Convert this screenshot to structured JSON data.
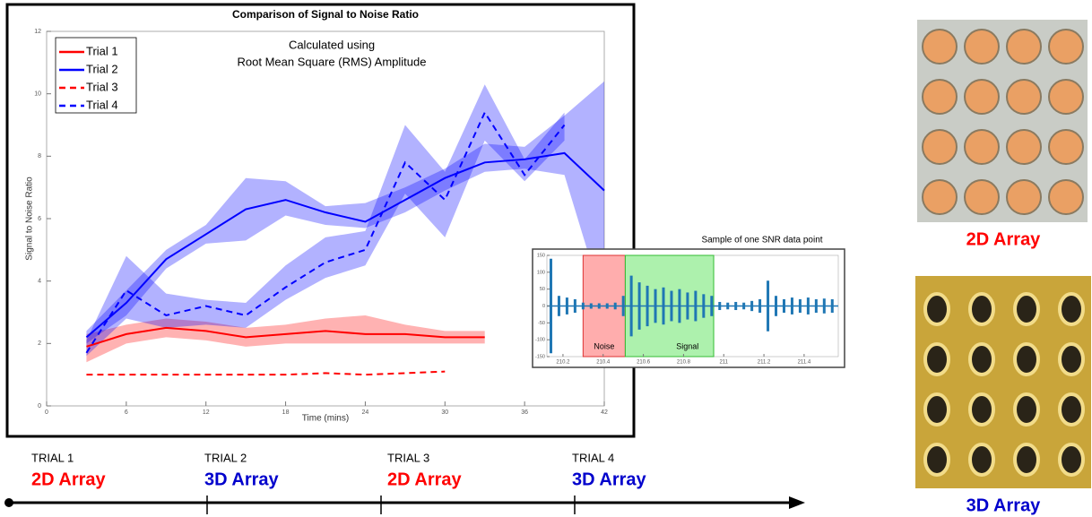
{
  "chart_data": [
    {
      "type": "line",
      "title": "Comparison of Signal to Noise Ratio",
      "annotations": [
        "Calculated using",
        "Root Mean Square (RMS) Amplitude"
      ],
      "xlabel": "Time (mins)",
      "ylabel": "Signal to Noise Ratio",
      "x": [
        3,
        6,
        9,
        12,
        15,
        18,
        21,
        24,
        27,
        30,
        33,
        36,
        39,
        42
      ],
      "xlim": [
        0,
        42
      ],
      "xticks": [
        0,
        6,
        12,
        18,
        24,
        30,
        36,
        42
      ],
      "ylim": [
        0,
        12
      ],
      "yticks": [
        0,
        2,
        4,
        6,
        8,
        10,
        12
      ],
      "legend": "upper left",
      "series": [
        {
          "name": "Trial 1",
          "color": "#ff0000",
          "dashed": false,
          "values": [
            1.9,
            2.3,
            2.5,
            2.4,
            2.2,
            2.3,
            2.4,
            2.3,
            2.3,
            2.2,
            2.2,
            null,
            null,
            null
          ],
          "lower": [
            1.4,
            2.0,
            2.2,
            2.1,
            1.9,
            2.0,
            2.0,
            2.0,
            2.0,
            2.0,
            2.0,
            null,
            null,
            null
          ],
          "upper": [
            2.3,
            2.6,
            2.8,
            2.7,
            2.5,
            2.6,
            2.8,
            2.9,
            2.6,
            2.4,
            2.4,
            null,
            null,
            null
          ]
        },
        {
          "name": "Trial 2",
          "color": "#0000ff",
          "dashed": false,
          "values": [
            2.2,
            3.3,
            4.7,
            5.5,
            6.3,
            6.6,
            6.2,
            5.9,
            6.6,
            7.3,
            7.8,
            7.9,
            8.1,
            6.9
          ],
          "lower": [
            2.0,
            2.9,
            4.4,
            5.2,
            5.3,
            6.1,
            5.8,
            5.7,
            6.2,
            6.9,
            7.5,
            7.6,
            7.4,
            3.2
          ],
          "upper": [
            2.4,
            3.7,
            5.0,
            5.8,
            7.3,
            7.2,
            6.4,
            6.5,
            7.0,
            7.6,
            8.4,
            8.3,
            9.3,
            10.4
          ]
        },
        {
          "name": "Trial 3",
          "color": "#ff0000",
          "dashed": true,
          "values": [
            1.0,
            1.0,
            1.0,
            1.0,
            1.0,
            1.0,
            1.05,
            1.0,
            1.05,
            1.1,
            null,
            null,
            null,
            null
          ]
        },
        {
          "name": "Trial 4",
          "color": "#0000ff",
          "dashed": true,
          "values": [
            1.7,
            3.7,
            2.9,
            3.2,
            2.9,
            3.8,
            4.6,
            5.0,
            7.8,
            6.6,
            9.4,
            7.4,
            9.0,
            null
          ],
          "lower": [
            1.6,
            2.8,
            2.5,
            2.6,
            2.5,
            3.4,
            4.1,
            4.5,
            6.8,
            5.4,
            8.5,
            7.2,
            8.5,
            null
          ],
          "upper": [
            2.1,
            4.8,
            3.6,
            3.4,
            3.3,
            4.5,
            5.4,
            5.6,
            9.0,
            7.5,
            10.3,
            7.9,
            9.4,
            null
          ]
        }
      ]
    },
    {
      "type": "stem",
      "title": "Sample of one SNR data point",
      "color": "#1f77b4",
      "xlim": [
        210.12,
        211.57
      ],
      "xticks": [
        210.2,
        210.4,
        210.6,
        210.8,
        211,
        211.2,
        211.4
      ],
      "ylim": [
        -150,
        150
      ],
      "yticks": [
        -150,
        -100,
        -50,
        0,
        50,
        100,
        150
      ],
      "regions": [
        {
          "label": "Noise",
          "start": 210.3,
          "end": 210.51,
          "color": "#ff9999"
        },
        {
          "label": "Signal",
          "start": 210.51,
          "end": 210.95,
          "color": "#99ee99"
        }
      ],
      "x": [
        210.14,
        210.18,
        210.22,
        210.26,
        210.3,
        210.34,
        210.38,
        210.42,
        210.46,
        210.5,
        210.54,
        210.58,
        210.62,
        210.66,
        210.7,
        210.74,
        210.78,
        210.82,
        210.86,
        210.9,
        210.94,
        210.98,
        211.02,
        211.06,
        211.1,
        211.14,
        211.18,
        211.22,
        211.26,
        211.3,
        211.34,
        211.38,
        211.42,
        211.46,
        211.5,
        211.54
      ],
      "values": [
        140,
        30,
        25,
        20,
        10,
        8,
        8,
        8,
        10,
        30,
        90,
        70,
        60,
        50,
        55,
        45,
        50,
        40,
        45,
        35,
        30,
        12,
        10,
        12,
        10,
        15,
        20,
        75,
        30,
        20,
        25,
        20,
        25,
        20,
        22,
        20
      ]
    }
  ],
  "timeline": [
    {
      "trial": "TRIAL 1",
      "array": "2D Array",
      "color": "#ff0000"
    },
    {
      "trial": "TRIAL 2",
      "array": "3D Array",
      "color": "#0000cc"
    },
    {
      "trial": "TRIAL 3",
      "array": "2D Array",
      "color": "#ff0000"
    },
    {
      "trial": "TRIAL 4",
      "array": "3D Array",
      "color": "#0000cc"
    }
  ],
  "photos": [
    {
      "label": "2D Array",
      "color": "#ff0000"
    },
    {
      "label": "3D Array",
      "color": "#0000cc"
    }
  ]
}
